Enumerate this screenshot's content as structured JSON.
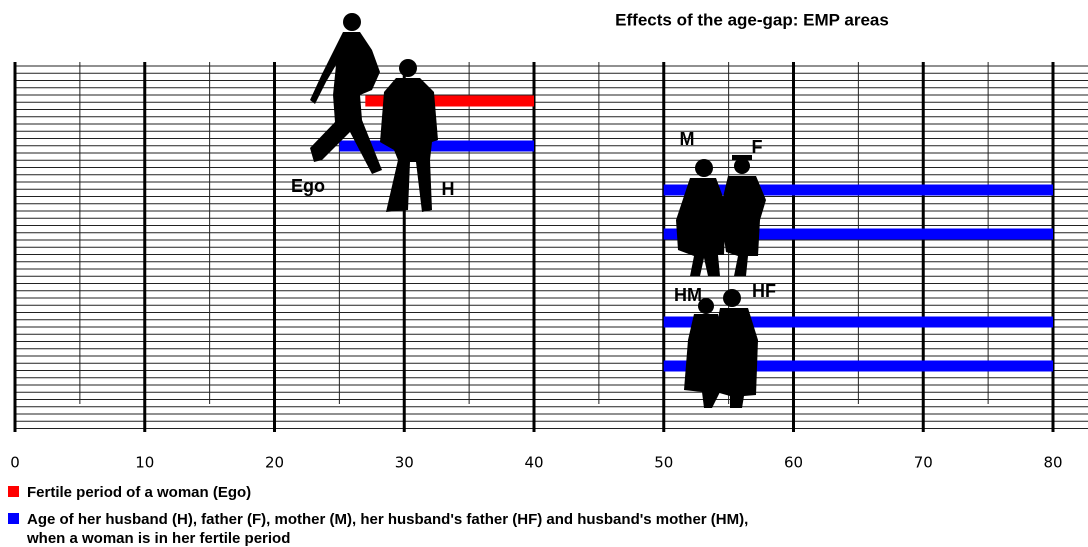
{
  "chart_data": {
    "type": "range-bar",
    "title": "Effects of the age-gap: EMP areas",
    "xlim": [
      0,
      80
    ],
    "xticks": [
      0,
      10,
      20,
      30,
      40,
      50,
      60,
      70,
      80
    ],
    "grid": true,
    "series": [
      {
        "name": "Fertile period of a woman (Ego)",
        "color": "#ff0000",
        "ranges": [
          [
            27,
            40
          ]
        ]
      },
      {
        "name": "Age of her husband (H), father (F), mother (M), her husband's father (HF) and husband's mother (HM),\nwhen a woman is in her fertile period",
        "color": "#0000ff",
        "ranges": [
          [
            25,
            40
          ],
          [
            50,
            80
          ],
          [
            50,
            80
          ],
          [
            50,
            80
          ],
          [
            50,
            80
          ]
        ]
      }
    ],
    "annotations": [
      "Ego",
      "H",
      "M",
      "F",
      "HM",
      "HF"
    ]
  }
}
